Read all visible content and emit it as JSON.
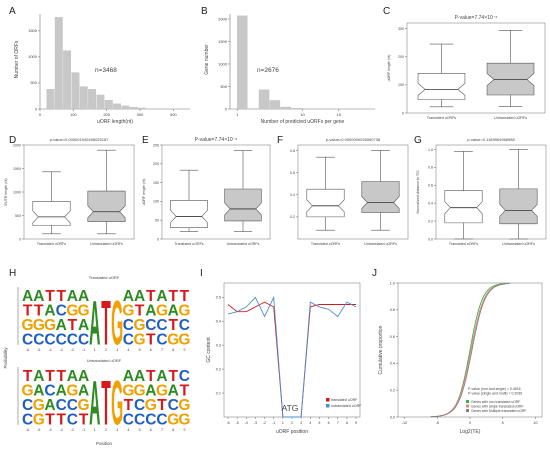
{
  "panel_labels": {
    "A": "A",
    "B": "B",
    "C": "C",
    "D": "D",
    "E": "E",
    "F": "F",
    "G": "G",
    "H": "H",
    "I": "I",
    "J": "J"
  },
  "chart_data": [
    {
      "id": "A",
      "type": "bar",
      "title": "",
      "xlabel": "uORF length(nt)",
      "ylabel": "Number of ORFs",
      "annotation": "n=3468",
      "x_ticks": [
        "0",
        "100",
        "200",
        "300",
        "400"
      ],
      "y_ticks": [
        "0",
        "500",
        "1000",
        "1500"
      ],
      "xlim": [
        0,
        450
      ],
      "ylim": [
        0,
        1900
      ],
      "bins": [
        {
          "x0": 20,
          "x1": 45,
          "value": 380
        },
        {
          "x0": 45,
          "x1": 70,
          "value": 1760
        },
        {
          "x0": 70,
          "x1": 95,
          "value": 1120
        },
        {
          "x0": 95,
          "x1": 120,
          "value": 700
        },
        {
          "x0": 120,
          "x1": 145,
          "value": 430
        },
        {
          "x0": 145,
          "x1": 170,
          "value": 380
        },
        {
          "x0": 170,
          "x1": 195,
          "value": 270
        },
        {
          "x0": 195,
          "x1": 220,
          "value": 170
        },
        {
          "x0": 220,
          "x1": 245,
          "value": 100
        },
        {
          "x0": 245,
          "x1": 270,
          "value": 60
        },
        {
          "x0": 270,
          "x1": 295,
          "value": 35
        },
        {
          "x0": 295,
          "x1": 320,
          "value": 20
        }
      ]
    },
    {
      "id": "B",
      "type": "bar",
      "title": "",
      "xlabel": "Number of predicted uORFs per gene",
      "ylabel": "Gene number",
      "annotation": "n=2676",
      "x_ticks": [
        "1",
        "10",
        "15"
      ],
      "y_ticks": [
        "0",
        "500",
        "1000",
        "1500",
        "2000"
      ],
      "xlim": [
        0,
        20
      ],
      "ylim": [
        0,
        2200
      ],
      "bins": [
        {
          "x0": 1,
          "x1": 2.5,
          "value": 2070
        },
        {
          "x0": 2.5,
          "x1": 4,
          "value": 10
        },
        {
          "x0": 4,
          "x1": 5.5,
          "value": 430
        },
        {
          "x0": 5.5,
          "x1": 7,
          "value": 190
        },
        {
          "x0": 7,
          "x1": 8.5,
          "value": 45
        },
        {
          "x0": 8.5,
          "x1": 10,
          "value": 15
        }
      ]
    },
    {
      "id": "C",
      "type": "box",
      "title": "P-value=7.74×10⁻⁶",
      "ylabel": "uORF length (nt)",
      "y_ticks": [
        "0",
        "100",
        "200",
        "300"
      ],
      "ylim": [
        0,
        320
      ],
      "groups": [
        {
          "name": "Translated uORFs",
          "min": 22,
          "q1": 48,
          "median": 84,
          "q3": 141,
          "max": 245,
          "fill": "#ffffff"
        },
        {
          "name": "Untranslated uORFs",
          "min": 23,
          "q1": 64,
          "median": 119,
          "q3": 177,
          "max": 294,
          "fill": "#c8c8c8"
        }
      ]
    },
    {
      "id": "D",
      "type": "box",
      "title": "p-value=0.000001940498025187",
      "ylabel": "5′UTR length (nt)",
      "y_ticks": [
        "0",
        "500",
        "1000",
        "1500",
        "2000"
      ],
      "ylim": [
        0,
        2000
      ],
      "groups": [
        {
          "name": "Translated uORFs",
          "min": 110,
          "q1": 290,
          "median": 470,
          "q3": 800,
          "max": 1430,
          "fill": "#ffffff"
        },
        {
          "name": "Untranslated uORFs",
          "min": 110,
          "q1": 370,
          "median": 580,
          "q3": 1020,
          "max": 1890,
          "fill": "#c8c8c8"
        }
      ]
    },
    {
      "id": "E",
      "type": "box",
      "title": "P-value=7.74×10⁻⁶",
      "ylabel": "uORF length (nt)",
      "y_ticks": [
        "0",
        "50",
        "100",
        "150",
        "200",
        "250"
      ],
      "ylim": [
        0,
        250
      ],
      "groups": [
        {
          "name": "Translated uORFs",
          "min": 20,
          "q1": 30,
          "median": 60,
          "q3": 103,
          "max": 183,
          "fill": "#ffffff"
        },
        {
          "name": "Untranslated uORFs",
          "min": 20,
          "q1": 48,
          "median": 80,
          "q3": 133,
          "max": 235,
          "fill": "#c8c8c8"
        }
      ]
    },
    {
      "id": "F",
      "type": "box",
      "title": "p-value=0.0000000026060738",
      "ylabel": "",
      "y_ticks": [
        "0.2",
        "0.4",
        "0.6",
        "0.8"
      ],
      "ylim": [
        0.0,
        0.85
      ],
      "groups": [
        {
          "name": "Translated uORFs",
          "min": 0.08,
          "q1": 0.2,
          "median": 0.3,
          "q3": 0.45,
          "max": 0.74,
          "fill": "#ffffff"
        },
        {
          "name": "Untranslated uORFs",
          "min": 0.08,
          "q1": 0.24,
          "median": 0.33,
          "q3": 0.52,
          "max": 0.8,
          "fill": "#c8c8c8"
        }
      ]
    },
    {
      "id": "G",
      "type": "box",
      "title": "p-value=0.1189964968988",
      "ylabel": "Normalized distance to TIS",
      "y_ticks": [
        "0.0",
        "0.2",
        "0.4",
        "0.6",
        "0.8",
        "1.0"
      ],
      "ylim": [
        0,
        1.05
      ],
      "groups": [
        {
          "name": "Translated uORFs",
          "min": 0.0,
          "q1": 0.18,
          "median": 0.35,
          "q3": 0.54,
          "max": 0.98,
          "fill": "#ffffff"
        },
        {
          "name": "Untranslated uORFs",
          "min": 0.0,
          "q1": 0.17,
          "median": 0.32,
          "q3": 0.56,
          "max": 1.0,
          "fill": "#c8c8c8"
        }
      ]
    },
    {
      "id": "H",
      "type": "sequence_logo",
      "ylabel": "Probability",
      "xlabel": "Position",
      "positions": [
        "-6",
        "-5",
        "-4",
        "-3",
        "-2",
        "-1",
        "1",
        "2",
        "3",
        "4",
        "5",
        "6",
        "7",
        "8",
        "9"
      ],
      "colors": {
        "A": "#2e8b22",
        "C": "#1f5fc4",
        "G": "#f0a000",
        "T": "#d7191c"
      },
      "logos": [
        {
          "title": "Translated uORF",
          "columns": [
            "ATGC",
            "ATGC",
            "TAGC",
            "TCAC",
            "AGTC",
            "AGAC",
            "A",
            "T",
            "G",
            "AGCC",
            "ATGG",
            "TACT",
            "AGCC",
            "TATG",
            "TGCG"
          ]
        },
        {
          "title": "Untranslated uORF",
          "columns": [
            "TGCC",
            "AAGG",
            "TCAT",
            "TACT",
            "AGCC",
            "AAGT",
            "A",
            "T",
            "G",
            "AGTC",
            "AGCC",
            "TAGC",
            "AGTC",
            "TACG",
            "CTGG"
          ]
        }
      ]
    },
    {
      "id": "I",
      "type": "line",
      "xlabel": "uORF position",
      "ylabel": "GC content",
      "annotation": "ATG",
      "x_ticks": [
        "-6",
        "-5",
        "-4",
        "-3",
        "-2",
        "-1",
        "1",
        "2",
        "3",
        "4",
        "5",
        "6",
        "7",
        "8",
        "9"
      ],
      "y_ticks": [
        "0.1",
        "0.2",
        "0.3",
        "0.4",
        "0.5"
      ],
      "ylim": [
        0.0,
        0.56
      ],
      "series": [
        {
          "name": "translated uORF",
          "color": "#d7191c",
          "values": [
            0.47,
            0.44,
            0.44,
            0.46,
            0.48,
            0.46,
            0.0,
            0.0,
            0.0,
            0.46,
            0.47,
            0.47,
            0.47,
            0.47,
            0.47
          ]
        },
        {
          "name": "untranslated uORF",
          "color": "#4f8fd6",
          "values": [
            0.43,
            0.44,
            0.46,
            0.5,
            0.42,
            0.5,
            0.0,
            0.0,
            0.0,
            0.48,
            0.46,
            0.45,
            0.42,
            0.48,
            0.46
          ]
        }
      ]
    },
    {
      "id": "J",
      "type": "line",
      "xlabel": "Log2(TE)",
      "ylabel": "Cumulative proportion",
      "x_ticks": [
        "-10",
        "-5",
        "0",
        "5",
        "10"
      ],
      "y_ticks": [
        "0.0",
        "0.2",
        "0.4",
        "0.6",
        "0.8",
        "1.0"
      ],
      "xlim": [
        -11,
        11
      ],
      "ylim": [
        0,
        1.0
      ],
      "pvalue_lines": [
        "P-value (non and single) = 0.4516",
        "P-value (single and multi) = 0.2036"
      ],
      "series": [
        {
          "name": "Genes with non translated uORF",
          "color": "#3cb043",
          "center": 0.0,
          "scale": 0.95
        },
        {
          "name": "Genes with single translated uORF",
          "color": "#ef8080",
          "center": 0.15,
          "scale": 1.0
        },
        {
          "name": "Genes with Multiple translated uORF",
          "color": "#808080",
          "center": 0.3,
          "scale": 1.0
        }
      ]
    }
  ]
}
